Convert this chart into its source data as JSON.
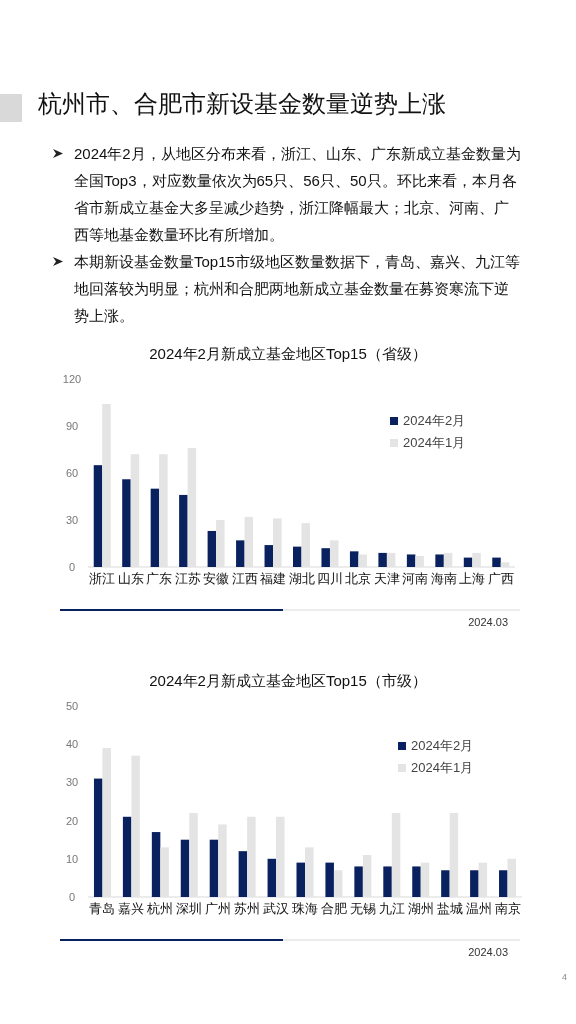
{
  "chart_data": [
    {
      "type": "other",
      "title": "杭州市、合肥市新设基金数量逆势上涨",
      "annotations": [
        "2024年2月，从地区分布来看，浙江、山东、广东新成立基金数量为全国Top3，对应数量依次为65只、56只、50只。环比来看，本月各省市新成立基金大多呈减少趋势，浙江降幅最大；北京、河南、广西等地基金数量环比有所增加。",
        "本期新设基金数量Top15市级地区数量数据下，青岛、嘉兴、九江等地回落较为明显；杭州和合肥两地新成立基金数量在募资寒流下逆势上涨。",
        "4"
      ]
    },
    {
      "type": "bar",
      "title": "2024年2月新成立基金地区Top15（省级）",
      "categories": [
        "浙江",
        "山东",
        "广东",
        "江苏",
        "安徽",
        "江西",
        "福建",
        "湖北",
        "四川",
        "北京",
        "天津",
        "河南",
        "海南",
        "上海",
        "广西"
      ],
      "series": [
        {
          "name": "2024年2月",
          "color": "#0a2160",
          "values": [
            65,
            56,
            50,
            46,
            23,
            17,
            14,
            13,
            12,
            10,
            9,
            8,
            8,
            6,
            6
          ]
        },
        {
          "name": "2024年1月",
          "color": "#e4e4e4",
          "values": [
            104,
            72,
            72,
            76,
            30,
            32,
            31,
            28,
            17,
            8,
            9,
            7,
            9,
            9,
            3
          ]
        }
      ],
      "ylim": [
        0,
        120
      ],
      "yticks": [
        0,
        30,
        60,
        90,
        120
      ],
      "grid": false,
      "legend": "top right",
      "annotations": [
        "2024.03"
      ]
    },
    {
      "type": "bar",
      "title": "2024年2月新成立基金地区Top15（市级）",
      "categories": [
        "青岛",
        "嘉兴",
        "杭州",
        "深圳",
        "广州",
        "苏州",
        "武汉",
        "珠海",
        "合肥",
        "无锡",
        "九江",
        "湖州",
        "盐城",
        "温州",
        "南京"
      ],
      "series": [
        {
          "name": "2024年2月",
          "color": "#0a2160",
          "values": [
            31,
            21,
            17,
            15,
            15,
            12,
            10,
            9,
            9,
            8,
            8,
            8,
            7,
            7,
            7
          ]
        },
        {
          "name": "2024年1月",
          "color": "#e4e4e4",
          "values": [
            39,
            37,
            13,
            22,
            19,
            21,
            21,
            13,
            7,
            11,
            22,
            9,
            22,
            9,
            10
          ]
        }
      ],
      "ylim": [
        0,
        50
      ],
      "yticks": [
        0,
        10,
        20,
        30,
        40,
        50
      ],
      "grid": false,
      "legend": "top right",
      "annotations": [
        "2024.03"
      ]
    }
  ]
}
